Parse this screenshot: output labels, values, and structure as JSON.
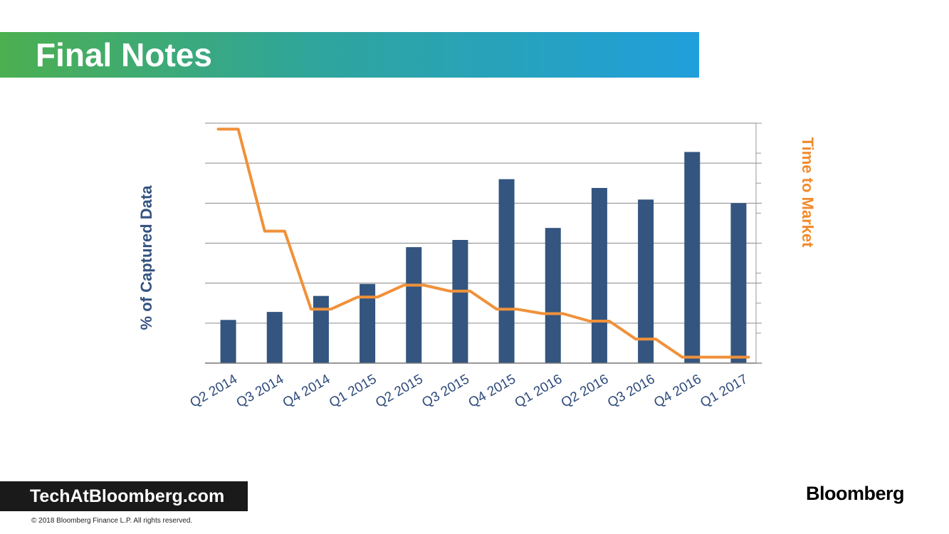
{
  "slide": {
    "title": "Final Notes",
    "footer_site": "TechAtBloomberg.com",
    "copyright": "© 2018 Bloomberg Finance L.P. All rights reserved.",
    "logo": "Bloomberg"
  },
  "colors": {
    "bar": "#33557f",
    "line": "#f0913a",
    "grid": "#8a8a8a",
    "axis_label_left": "#34527f",
    "axis_label_right": "#f08a2b",
    "title_gradient": [
      "#4caf50",
      "#209fdc"
    ]
  },
  "chart_data": {
    "type": "bar",
    "categories": [
      "Q2 2014",
      "Q3 2014",
      "Q4 2014",
      "Q1 2015",
      "Q2 2015",
      "Q3 2015",
      "Q4 2015",
      "Q1 2016",
      "Q2 2016",
      "Q3 2016",
      "Q4 2016",
      "Q1 2017"
    ],
    "ylabel": "% of Captured Data",
    "y2label": "Time to Market",
    "ylim": [
      0,
      6
    ],
    "y2lim": [
      0,
      8
    ],
    "grid": true,
    "series": [
      {
        "name": "% of Captured Data",
        "type": "bar",
        "axis": "left",
        "values": [
          1.08,
          1.28,
          1.68,
          1.98,
          2.9,
          3.08,
          4.6,
          3.38,
          4.38,
          4.09,
          5.28,
          4.0
        ]
      },
      {
        "name": "Time to Market",
        "type": "line",
        "axis": "right",
        "values": [
          7.8,
          4.4,
          1.8,
          2.2,
          2.6,
          2.4,
          1.8,
          1.65,
          1.4,
          0.8,
          0.2,
          0.2
        ]
      }
    ]
  }
}
